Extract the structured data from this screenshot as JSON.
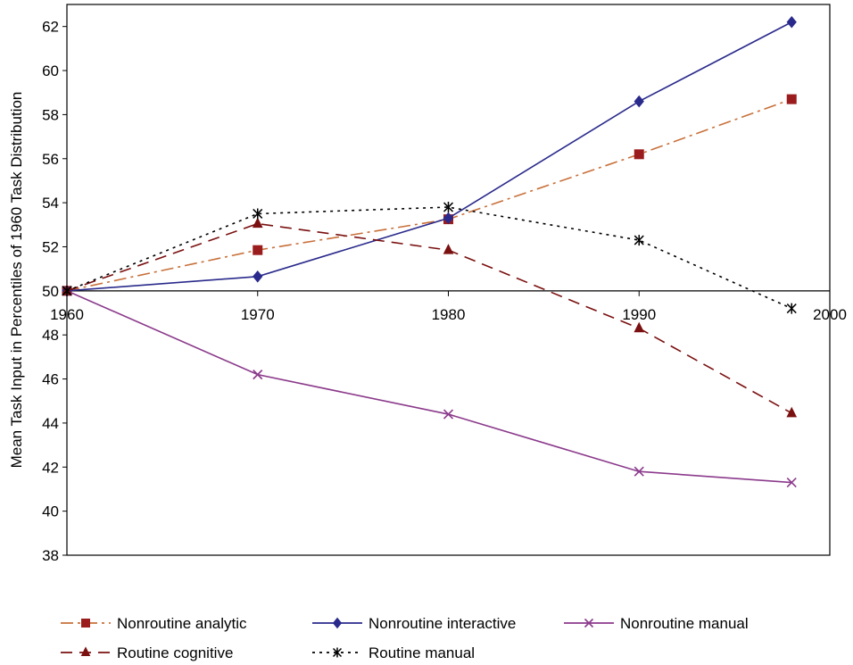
{
  "chart_data": {
    "type": "line",
    "title": "",
    "xlabel": "",
    "ylabel": "Mean Task Input in Percentiles of 1960 Task Distribution",
    "xlim": [
      1960,
      2000
    ],
    "ylim": [
      38,
      63
    ],
    "x_axis_crosses_y": 50,
    "x_ticks": [
      1960,
      1970,
      1980,
      1990,
      2000
    ],
    "y_ticks": [
      38,
      40,
      42,
      44,
      46,
      48,
      50,
      52,
      54,
      56,
      58,
      60,
      62
    ],
    "grid": false,
    "legend_position": "bottom",
    "x": [
      1960,
      1970,
      1980,
      1990,
      1998
    ],
    "series": [
      {
        "key": "nonroutine-analytic",
        "name": "Nonroutine analytic",
        "values": [
          50.0,
          51.85,
          53.25,
          56.2,
          58.7
        ],
        "color": "#9b1c1c",
        "line_color": "#c8703a",
        "dash": "14,5,3,5",
        "marker": "square"
      },
      {
        "key": "nonroutine-interactive",
        "name": "Nonroutine interactive",
        "values": [
          50.0,
          50.65,
          53.3,
          58.6,
          62.2
        ],
        "color": "#2a2a8c",
        "line_color": "#2a2a8c",
        "dash": "",
        "marker": "diamond"
      },
      {
        "key": "nonroutine-manual",
        "name": "Nonroutine manual",
        "values": [
          50.0,
          46.2,
          44.4,
          41.8,
          41.3
        ],
        "color": "#8b3a8b",
        "line_color": "#8b3a8b",
        "dash": "",
        "marker": "x"
      },
      {
        "key": "routine-cognitive",
        "name": "Routine cognitive",
        "values": [
          50.0,
          53.05,
          51.85,
          48.3,
          44.45
        ],
        "color": "#7a1010",
        "line_color": "#7a1010",
        "dash": "13,8",
        "marker": "triangle"
      },
      {
        "key": "routine-manual",
        "name": "Routine manual",
        "values": [
          50.0,
          53.5,
          53.8,
          52.3,
          49.2
        ],
        "color": "#000000",
        "line_color": "#000000",
        "dash": "3,5",
        "marker": "asterisk"
      }
    ]
  }
}
